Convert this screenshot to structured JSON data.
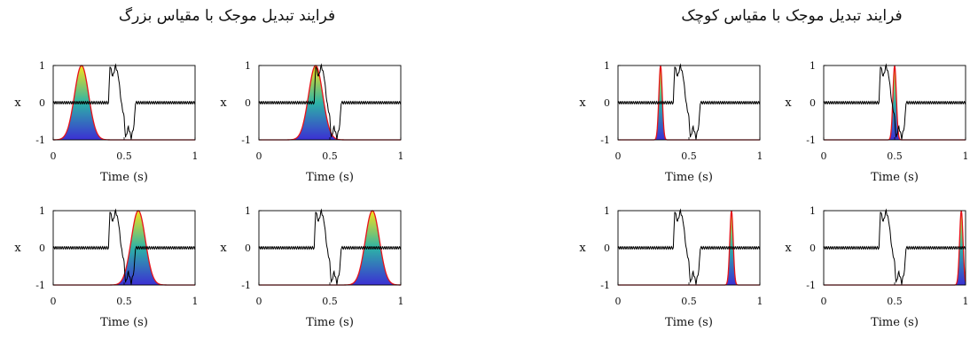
{
  "panels": [
    {
      "title": "فرایند تبدیل موجک با مقیاس بزرگ",
      "wavelet": "wide"
    },
    {
      "title": "فرایند تبدیل موجک با مقیاس کوچک",
      "wavelet": "narrow"
    }
  ],
  "colors": {
    "signal": "#000000",
    "envelope": "#e8121a",
    "gradient_top": "#f7e11c",
    "gradient_mid": "#2db3a6",
    "gradient_bottom": "#3b2fd3"
  },
  "chart_data": [
    {
      "type": "line",
      "panel": "large-scale",
      "xlabel": "Time (s)",
      "ylabel": "x",
      "xlim": [
        0,
        1
      ],
      "ylim": [
        -1,
        1
      ],
      "x_ticks": [
        "0",
        "0.5",
        "1"
      ],
      "y_ticks": [
        "1",
        "0",
        "-1"
      ],
      "subplots": [
        {
          "position": "top-left",
          "wavelet_center": 0.2,
          "wavelet_width": 0.05
        },
        {
          "position": "top-right",
          "wavelet_center": 0.4,
          "wavelet_width": 0.05
        },
        {
          "position": "bottom-left",
          "wavelet_center": 0.6,
          "wavelet_width": 0.05
        },
        {
          "position": "bottom-right",
          "wavelet_center": 0.8,
          "wavelet_width": 0.05
        }
      ],
      "signal": {
        "x": [
          0,
          0.39,
          0.4,
          0.42,
          0.44,
          0.46,
          0.48,
          0.5,
          0.51,
          0.53,
          0.55,
          0.57,
          0.58,
          0.6,
          1.0
        ],
        "y": [
          0,
          0,
          1,
          0.7,
          1,
          0.7,
          0,
          -0.4,
          -0.95,
          -0.65,
          -0.95,
          -0.6,
          0,
          0,
          0
        ]
      }
    },
    {
      "type": "line",
      "panel": "small-scale",
      "xlabel": "Time (s)",
      "ylabel": "x",
      "xlim": [
        0,
        1
      ],
      "ylim": [
        -1,
        1
      ],
      "x_ticks": [
        "0",
        "0.5",
        "1"
      ],
      "y_ticks": [
        "1",
        "0",
        "-1"
      ],
      "subplots": [
        {
          "position": "top-left",
          "wavelet_center": 0.3,
          "wavelet_width": 0.012
        },
        {
          "position": "top-right",
          "wavelet_center": 0.5,
          "wavelet_width": 0.012
        },
        {
          "position": "bottom-left",
          "wavelet_center": 0.8,
          "wavelet_width": 0.012
        },
        {
          "position": "bottom-right",
          "wavelet_center": 0.97,
          "wavelet_width": 0.012
        }
      ],
      "signal": {
        "x": [
          0,
          0.39,
          0.4,
          0.42,
          0.44,
          0.46,
          0.48,
          0.5,
          0.51,
          0.53,
          0.55,
          0.57,
          0.58,
          0.6,
          1.0
        ],
        "y": [
          0,
          0,
          1,
          0.7,
          1,
          0.7,
          0,
          -0.4,
          -0.95,
          -0.65,
          -0.95,
          -0.6,
          0,
          0,
          0
        ]
      }
    }
  ]
}
